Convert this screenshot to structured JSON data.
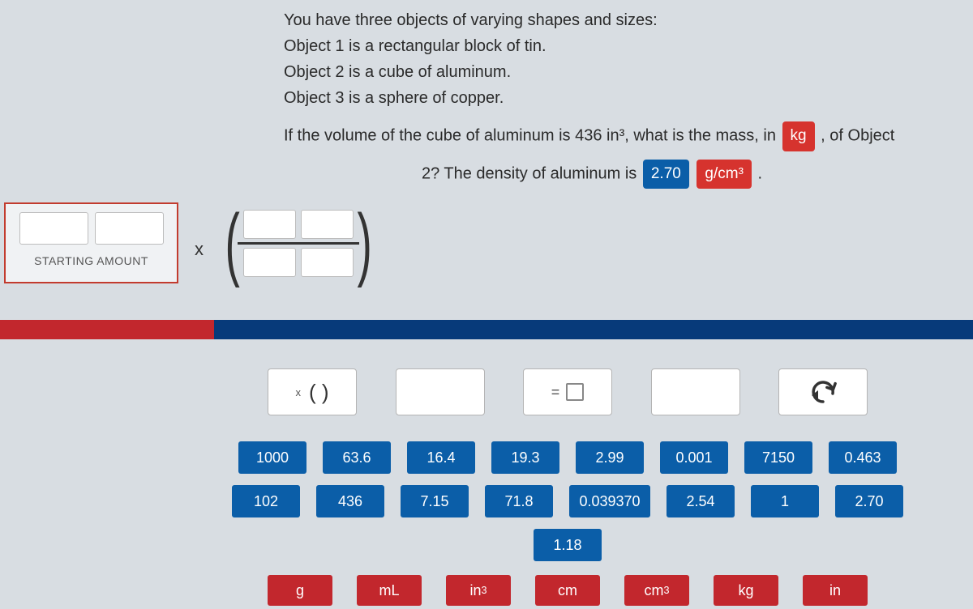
{
  "problem": {
    "intro": "You have three objects of varying shapes and sizes:",
    "line1": "Object 1 is a rectangular block of tin.",
    "line2": "Object 2 is a cube of aluminum.",
    "line3": "Object 3 is a sphere of copper.",
    "question_prefix": "If the volume of the cube of aluminum is 436 in³, what is the mass, in",
    "target_unit": "kg",
    "question_mid": ", of Object",
    "line5_prefix": "2? The density of aluminum is",
    "density_value": "2.70",
    "density_unit": "g/cm³",
    "period": "."
  },
  "starting_label": "STARTING AMOUNT",
  "times": "x",
  "tools": {
    "times_factor_label": "( )",
    "equals": "="
  },
  "number_tiles_row1": [
    "1000",
    "63.6",
    "16.4",
    "19.3",
    "2.99",
    "0.001",
    "7150",
    "0.463"
  ],
  "number_tiles_row2": [
    "102",
    "436",
    "7.15",
    "71.8",
    "0.039370",
    "2.54",
    "1",
    "2.70"
  ],
  "number_tiles_row3": [
    "1.18"
  ],
  "unit_tiles": [
    "g",
    "mL",
    "in³",
    "cm",
    "cm³",
    "kg",
    "in"
  ],
  "colors": {
    "blue": "#0b5ea8",
    "red": "#c2272d",
    "bg": "#d8dde2"
  }
}
